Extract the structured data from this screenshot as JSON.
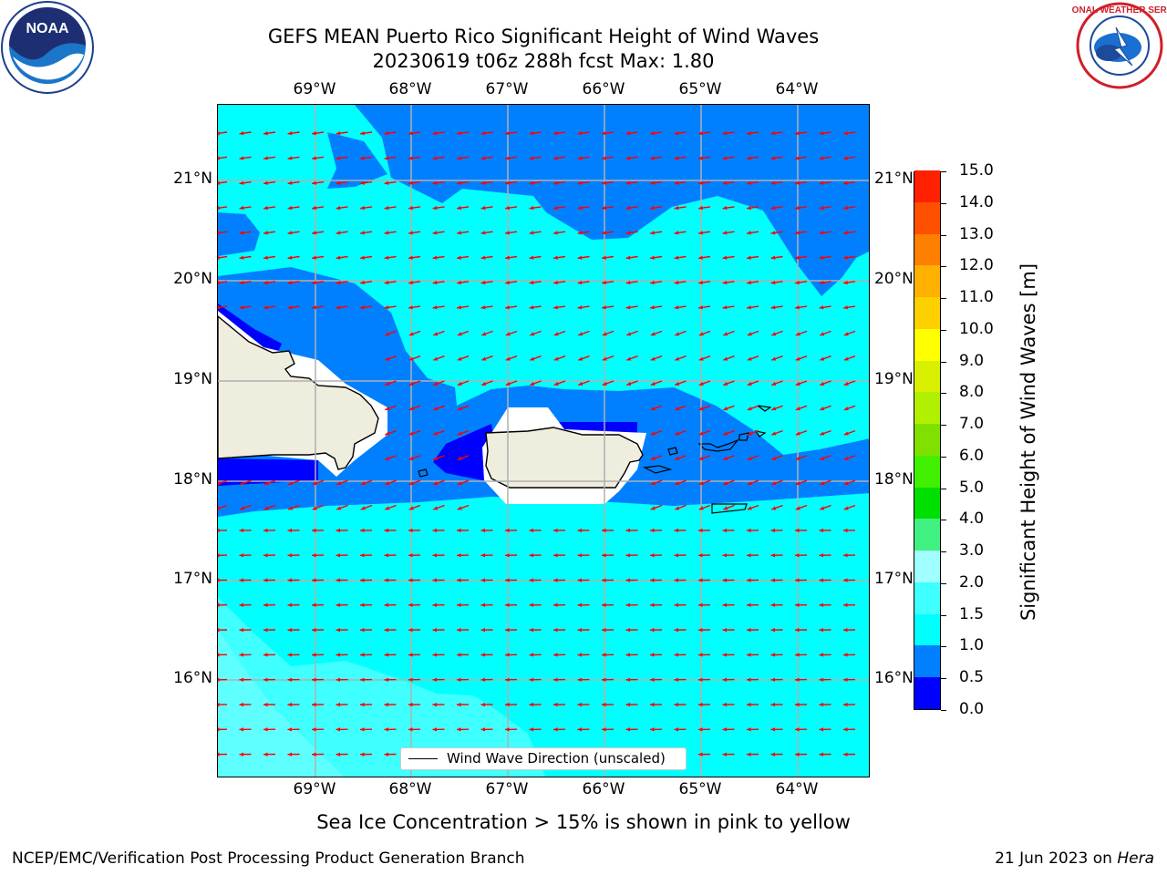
{
  "title": {
    "line1": "GEFS MEAN Puerto Rico Significant Height of Wind Waves",
    "line2": "20230619 t06z 288h fcst   Max: 1.80"
  },
  "logos": {
    "left": {
      "name": "noaa-logo",
      "text": "NOAA"
    },
    "right": {
      "name": "nws-logo",
      "text": "NATIONAL WEATHER SERVICE"
    }
  },
  "map": {
    "lon_labels": [
      "69°W",
      "68°W",
      "67°W",
      "66°W",
      "65°W",
      "64°W"
    ],
    "lat_labels": [
      "21°N",
      "20°N",
      "19°N",
      "18°N",
      "17°N",
      "16°N"
    ],
    "arrow_color": "#ff0000",
    "land_color": "#efedde",
    "legend_label": "Wind Wave Direction (unscaled)"
  },
  "colorbar": {
    "title": "Significant Height of Wind Waves [m]",
    "ticks": [
      "0.0",
      "0.5",
      "1.0",
      "1.5",
      "2.0",
      "3.0",
      "4.0",
      "5.0",
      "6.0",
      "7.0",
      "8.0",
      "9.0",
      "10.0",
      "11.0",
      "12.0",
      "13.0",
      "14.0",
      "15.0"
    ],
    "colors": [
      "#0000ff",
      "#0080ff",
      "#00ffff",
      "#40ffff",
      "#a0ffff",
      "#40f080",
      "#00e000",
      "#40f000",
      "#80e000",
      "#b0f000",
      "#d8f000",
      "#ffff00",
      "#ffd000",
      "#ffb000",
      "#ff8000",
      "#ff5000",
      "#ff2000"
    ]
  },
  "subtitle": "Sea Ice Concentration > 15% is shown in pink to yellow",
  "footer": {
    "left": "NCEP/EMC/Verification Post Processing Product Generation Branch",
    "right_date": "21 Jun 2023 on ",
    "right_host": "Hera"
  }
}
